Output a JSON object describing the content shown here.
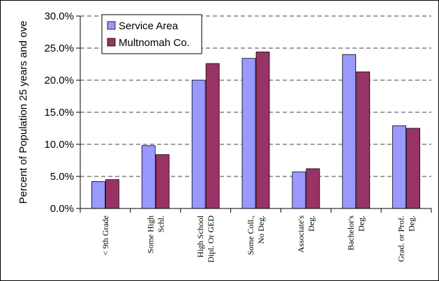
{
  "chart_data": {
    "type": "bar",
    "title": "",
    "xlabel": "",
    "ylabel": "Percent of Population 25 years and ove",
    "ylim": [
      0,
      30
    ],
    "yticks": [
      "0.0%",
      "5.0%",
      "10.0%",
      "15.0%",
      "20.0%",
      "25.0%",
      "30.0%"
    ],
    "grid": "horizontal dashed",
    "legend_position": "top-left",
    "categories": [
      [
        "< 9th Grade"
      ],
      [
        "Some High",
        "Schl."
      ],
      [
        "High School",
        "Dipl. Or GED"
      ],
      [
        "Some Coll.,",
        "No Deg."
      ],
      [
        "Associate's",
        "Deg."
      ],
      [
        "Bachelor's",
        "Deg."
      ],
      [
        "Grad. or Prof.",
        "Deg."
      ]
    ],
    "series": [
      {
        "name": "Service Area",
        "color": "#9999FF",
        "values": [
          4.2,
          9.8,
          20.0,
          23.4,
          5.7,
          24.0,
          12.9
        ]
      },
      {
        "name": "Multnomah Co.",
        "color": "#993366",
        "values": [
          4.5,
          8.4,
          22.6,
          24.4,
          6.2,
          21.3,
          12.5
        ]
      }
    ]
  }
}
